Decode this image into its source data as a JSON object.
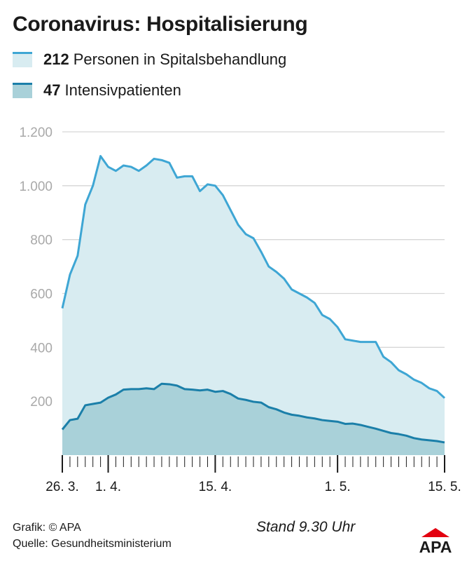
{
  "title": "Coronavirus: Hospitalisierung",
  "legend": [
    {
      "value": "212",
      "label": "Personen in Spitalsbehandlung"
    },
    {
      "value": "47",
      "label": "Intensivpatienten"
    }
  ],
  "colors": {
    "hospital_line": "#3ea6d4",
    "hospital_fill": "#d8ecf1",
    "icu_line": "#1b7fa9",
    "icu_fill": "#a9d1d9",
    "grid": "#d6d6d6",
    "logo_red": "#e3000f"
  },
  "chart_data": {
    "type": "area",
    "x_start": "2020-03-26",
    "x_end": "2020-05-15",
    "ylim": [
      0,
      1200
    ],
    "yticks": [
      200,
      400,
      600,
      800,
      1000,
      1200
    ],
    "ytick_labels": [
      "200",
      "400",
      "600",
      "800",
      "1.000",
      "1.200"
    ],
    "xtick_labels": [
      {
        "date": "2020-03-26",
        "label": "26. 3."
      },
      {
        "date": "2020-04-01",
        "label": "1. 4."
      },
      {
        "date": "2020-04-15",
        "label": "15. 4."
      },
      {
        "date": "2020-05-01",
        "label": "1. 5."
      },
      {
        "date": "2020-05-15",
        "label": "15. 5."
      }
    ],
    "grid": true,
    "series": [
      {
        "name": "Personen in Spitalsbehandlung",
        "values": [
          545,
          670,
          740,
          930,
          1000,
          1110,
          1070,
          1055,
          1075,
          1070,
          1055,
          1075,
          1100,
          1095,
          1085,
          1030,
          1035,
          1035,
          980,
          1005,
          1000,
          965,
          910,
          855,
          820,
          805,
          755,
          700,
          680,
          655,
          615,
          600,
          585,
          565,
          520,
          505,
          475,
          430,
          425,
          420,
          420,
          420,
          365,
          345,
          315,
          300,
          280,
          268,
          248,
          238,
          212
        ]
      },
      {
        "name": "Intensivpatienten",
        "values": [
          95,
          130,
          135,
          185,
          190,
          195,
          213,
          225,
          243,
          245,
          245,
          248,
          245,
          265,
          263,
          258,
          245,
          243,
          240,
          243,
          235,
          238,
          227,
          210,
          205,
          198,
          195,
          178,
          170,
          158,
          150,
          146,
          140,
          136,
          130,
          127,
          124,
          116,
          117,
          112,
          105,
          98,
          90,
          82,
          78,
          72,
          63,
          58,
          55,
          52,
          47
        ]
      }
    ]
  },
  "footer": {
    "grafik": "Grafik: © APA",
    "quelle": "Quelle: Gesundheitsministerium",
    "stand": "Stand 9.30 Uhr",
    "logo": "APA"
  }
}
